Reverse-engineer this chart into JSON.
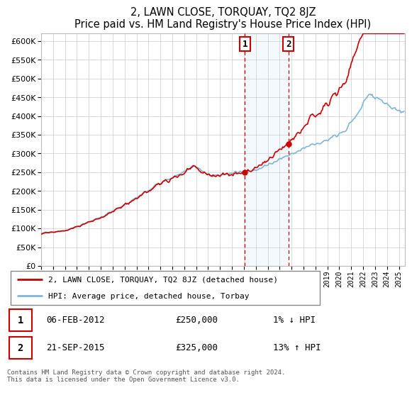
{
  "title": "2, LAWN CLOSE, TORQUAY, TQ2 8JZ",
  "subtitle": "Price paid vs. HM Land Registry's House Price Index (HPI)",
  "ylim": [
    0,
    620000
  ],
  "yticks": [
    0,
    50000,
    100000,
    150000,
    200000,
    250000,
    300000,
    350000,
    400000,
    450000,
    500000,
    550000,
    600000
  ],
  "sale1_date": 2012.09,
  "sale1_price": 250000,
  "sale2_date": 2015.72,
  "sale2_price": 325000,
  "hpi_color": "#7EB6D9",
  "price_color": "#CC0000",
  "shaded_region_color": "#DDEEFF",
  "legend_line1": "2, LAWN CLOSE, TORQUAY, TQ2 8JZ (detached house)",
  "legend_line2": "HPI: Average price, detached house, Torbay",
  "table_row1_num": "1",
  "table_row1_date": "06-FEB-2012",
  "table_row1_price": "£250,000",
  "table_row1_hpi": "1% ↓ HPI",
  "table_row2_num": "2",
  "table_row2_date": "21-SEP-2015",
  "table_row2_price": "£325,000",
  "table_row2_hpi": "13% ↑ HPI",
  "footer": "Contains HM Land Registry data © Crown copyright and database right 2024.\nThis data is licensed under the Open Government Licence v3.0.",
  "xstart": 1995.0,
  "xend": 2025.5
}
